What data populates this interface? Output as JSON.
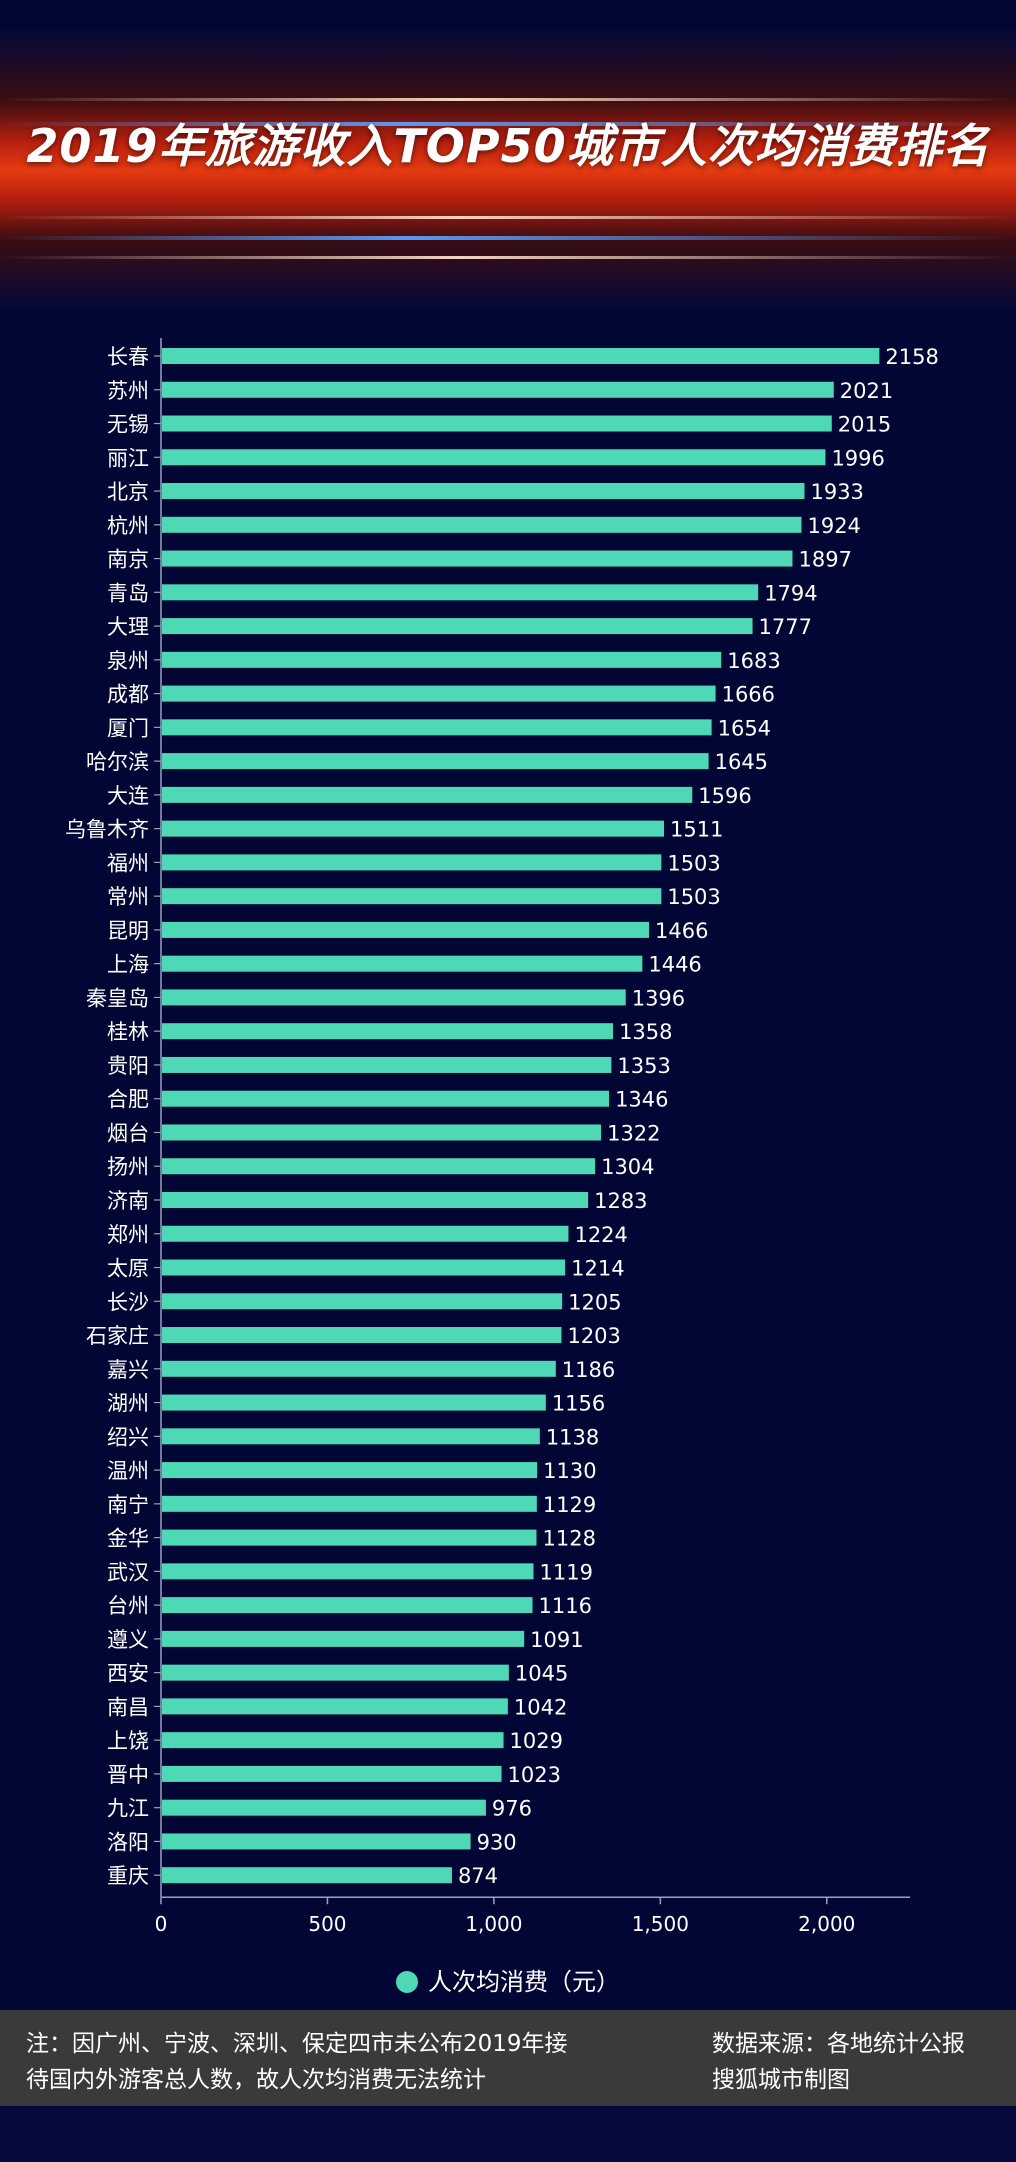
{
  "title": "2019年旅游收入TOP50城市人次均消费排名",
  "legend_label": "人次均消费（元）",
  "footnote": {
    "line1": "注：因广州、宁波、深圳、保定四市未公布2019年接",
    "line2": "待国内外游客总人数，故人次均消费无法统计"
  },
  "source": {
    "line1": "数据来源：各地统计公报",
    "line2": "搜狐城市制图"
  },
  "colors": {
    "bar": "#4fd8b6",
    "background": "#020634",
    "axis": "#9aa0c0",
    "text": "#ffffff"
  },
  "chart_data": {
    "type": "bar",
    "orientation": "horizontal",
    "title": "2019年旅游收入TOP50城市人次均消费排名",
    "series_name": "人次均消费（元）",
    "xlim": [
      0,
      2250
    ],
    "xticks": [
      0,
      500,
      1000,
      1500,
      2000
    ],
    "xtick_labels": [
      "0",
      "500",
      "1,000",
      "1,500",
      "2,000"
    ],
    "categories": [
      "长春",
      "苏州",
      "无锡",
      "丽江",
      "北京",
      "杭州",
      "南京",
      "青岛",
      "大理",
      "泉州",
      "成都",
      "厦门",
      "哈尔滨",
      "大连",
      "乌鲁木齐",
      "福州",
      "常州",
      "昆明",
      "上海",
      "秦皇岛",
      "桂林",
      "贵阳",
      "合肥",
      "烟台",
      "扬州",
      "济南",
      "郑州",
      "太原",
      "长沙",
      "石家庄",
      "嘉兴",
      "湖州",
      "绍兴",
      "温州",
      "南宁",
      "金华",
      "武汉",
      "台州",
      "遵义",
      "西安",
      "南昌",
      "上饶",
      "晋中",
      "九江",
      "洛阳",
      "重庆"
    ],
    "values": [
      2158,
      2021,
      2015,
      1996,
      1933,
      1924,
      1897,
      1794,
      1777,
      1683,
      1666,
      1654,
      1645,
      1596,
      1511,
      1503,
      1503,
      1466,
      1446,
      1396,
      1358,
      1353,
      1346,
      1322,
      1304,
      1283,
      1224,
      1214,
      1205,
      1203,
      1186,
      1156,
      1138,
      1130,
      1129,
      1128,
      1119,
      1116,
      1091,
      1045,
      1042,
      1029,
      1023,
      976,
      930,
      874
    ],
    "grid": false,
    "legend_position": "bottom-center"
  }
}
